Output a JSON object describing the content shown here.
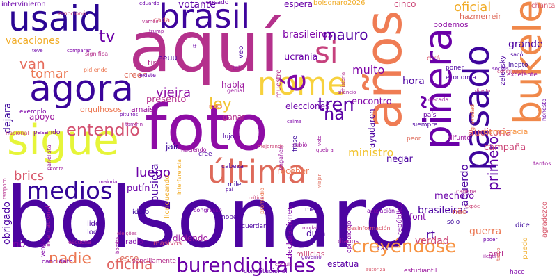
{
  "words": [
    {
      "text": "bolsonaro",
      "color": "#4c04a0",
      "size": 120,
      "rot": 0
    },
    {
      "text": "aquí",
      "color": "#b4318c",
      "size": 100,
      "rot": 0
    },
    {
      "text": "foto",
      "color": "#8e0ca5",
      "size": 90,
      "rot": 0
    },
    {
      "text": "años",
      "color": "#ef7c54",
      "size": 72,
      "rot": -90
    },
    {
      "text": "sigue",
      "color": "#e6f539",
      "size": 60,
      "rot": 0
    },
    {
      "text": "agora",
      "color": "#3a049a",
      "size": 52,
      "rot": 0
    },
    {
      "text": "piñera",
      "color": "#6a00a8",
      "size": 55,
      "rot": -90
    },
    {
      "text": "bukele",
      "color": "#f0884a",
      "size": 54,
      "rot": -90
    },
    {
      "text": "pasado",
      "color": "#3e049c",
      "size": 50,
      "rot": -90
    },
    {
      "text": "usaid",
      "color": "#2a0593",
      "size": 50,
      "rot": 0
    },
    {
      "text": "brasil",
      "color": "#3e049c",
      "size": 48,
      "rot": 0
    },
    {
      "text": "nome",
      "color": "#f7d13d",
      "size": 45,
      "rot": 0
    },
    {
      "text": "última",
      "color": "#de6a5a",
      "size": 45,
      "rot": 0
    },
    {
      "text": "é",
      "color": "#7f0aa7",
      "size": 45,
      "rot": -90
    },
    {
      "text": "si",
      "color": "#c6417d",
      "size": 42,
      "rot": 0
    },
    {
      "text": "medios",
      "color": "#330597",
      "size": 34,
      "rot": 0
    },
    {
      "text": "burendigitales",
      "color": "#6a00a8",
      "size": 28,
      "rot": 0
    },
    {
      "text": "creyéndose",
      "color": "#f79342",
      "size": 26,
      "rot": 0
    },
    {
      "text": "entendió",
      "color": "#d35171",
      "size": 24,
      "rot": 0
    },
    {
      "text": "tren",
      "color": "#5c01a6",
      "size": 26,
      "rot": 0
    },
    {
      "text": "tv",
      "color": "#6b00a8",
      "size": 24,
      "rot": 0
    },
    {
      "text": "van",
      "color": "#e66c5c",
      "size": 20,
      "rot": 0
    },
    {
      "text": "tomar",
      "color": "#ec7853",
      "size": 18,
      "rot": 0
    },
    {
      "text": "mauro",
      "color": "#5302a3",
      "size": 20,
      "rot": 0
    },
    {
      "text": "ley",
      "color": "#f2c431",
      "size": 22,
      "rot": 0
    },
    {
      "text": "na",
      "color": "#5a01a5",
      "size": 24,
      "rot": 0
    },
    {
      "text": "nadie",
      "color": "#ec7853",
      "size": 22,
      "rot": 0
    },
    {
      "text": "oficina",
      "color": "#e06461",
      "size": 20,
      "rot": 0
    },
    {
      "text": "luego",
      "color": "#6c00a8",
      "size": 18,
      "rot": 0
    },
    {
      "text": "brics",
      "color": "#d8576b",
      "size": 18,
      "rot": 0
    },
    {
      "text": "vieira",
      "color": "#8f0da4",
      "size": 18,
      "rot": 0
    },
    {
      "text": "muito",
      "color": "#7e03a8",
      "size": 16,
      "rot": 0
    },
    {
      "text": "primero",
      "color": "#5e01a6",
      "size": 20,
      "rot": -90
    },
    {
      "text": "oficial",
      "color": "#f1ad2a",
      "size": 18,
      "rot": 0
    },
    {
      "text": "grande",
      "color": "#4c02a1",
      "size": 14,
      "rot": 0
    },
    {
      "text": "brasileiros",
      "color": "#7e03a8",
      "size": 14,
      "rot": 0
    },
    {
      "text": "ucrania",
      "color": "#6a00a8",
      "size": 13,
      "rot": 0
    },
    {
      "text": "vacaciones",
      "color": "#f1ad2a",
      "size": 14,
      "rot": 0
    },
    {
      "text": "dejara",
      "color": "#3a049a",
      "size": 14,
      "rot": -90
    },
    {
      "text": "obrigado",
      "color": "#4c02a1",
      "size": 14,
      "rot": -90
    },
    {
      "text": "pusiera",
      "color": "#4c02a1",
      "size": 15,
      "rot": -90
    },
    {
      "text": "putín",
      "color": "#6a00a8",
      "size": 13,
      "rot": 0
    },
    {
      "text": "mechero",
      "color": "#6a00a8",
      "size": 13,
      "rot": 0
    },
    {
      "text": "brasileiras",
      "color": "#4c02a1",
      "size": 14,
      "rot": 0
    },
    {
      "text": "ministro",
      "color": "#f2c431",
      "size": 16,
      "rot": 0
    },
    {
      "text": "acuerdo",
      "color": "#4c02a1",
      "size": 15,
      "rot": -90
    },
    {
      "text": "guerra",
      "color": "#ec7853",
      "size": 14,
      "rot": 0
    },
    {
      "text": "verdad",
      "color": "#cc4778",
      "size": 14,
      "rot": 0
    },
    {
      "text": "hora",
      "color": "#4c02a1",
      "size": 14,
      "rot": 0
    },
    {
      "text": "encontro",
      "color": "#7e03a8",
      "size": 13,
      "rot": 0
    },
    {
      "text": "ayudaron",
      "color": "#4c02a1",
      "size": 12,
      "rot": -90
    },
    {
      "text": "auditoria",
      "color": "#d8576b",
      "size": 14,
      "rot": 0
    },
    {
      "text": "campaña",
      "color": "#cc4778",
      "size": 13,
      "rot": 0
    },
    {
      "text": "democracia",
      "color": "#f79342",
      "size": 11,
      "rot": 0
    },
    {
      "text": "presento",
      "color": "#b52f8c",
      "size": 13,
      "rot": 0
    },
    {
      "text": "creer",
      "color": "#de6a5a",
      "size": 12,
      "rot": 0
    },
    {
      "text": "apoyo",
      "color": "#9c179e",
      "size": 12,
      "rot": 0
    },
    {
      "text": "elecciones",
      "color": "#6a00a8",
      "size": 12,
      "rot": 0
    },
    {
      "text": "jair",
      "color": "#3a049a",
      "size": 12,
      "rot": 0
    },
    {
      "text": "negar",
      "color": "#4c02a1",
      "size": 13,
      "rot": 0
    },
    {
      "text": "receber",
      "color": "#ec7853",
      "size": 12,
      "rot": 0
    },
    {
      "text": "rio",
      "color": "#7e03a8",
      "size": 14,
      "rot": 0
    },
    {
      "text": "esse",
      "color": "#de6a5a",
      "size": 12,
      "rot": 0
    },
    {
      "text": "estatua",
      "color": "#5c01a6",
      "size": 12,
      "rot": 0
    },
    {
      "text": "milicias",
      "color": "#cc4778",
      "size": 11,
      "rot": 0
    },
    {
      "text": "diciendo",
      "color": "#9c179e",
      "size": 12,
      "rot": 0
    },
    {
      "text": "dura",
      "color": "#4c02a1",
      "size": 12,
      "rot": 0
    },
    {
      "text": "font",
      "color": "#7e03a8",
      "size": 12,
      "rot": 0
    },
    {
      "text": "rt",
      "color": "#4c02a1",
      "size": 16,
      "rot": 0
    },
    {
      "text": "dice",
      "color": "#3a049a",
      "size": 10,
      "rot": 0
    },
    {
      "text": "puedo",
      "color": "#f1ad2a",
      "size": 10,
      "rot": -90
    },
    {
      "text": "anti",
      "color": "#b52f8c",
      "size": 11,
      "rot": 0
    },
    {
      "text": "hace",
      "color": "#7e03a8",
      "size": 9,
      "rot": 0
    },
    {
      "text": "não",
      "color": "#de6a5a",
      "size": 11,
      "rot": 0
    },
    {
      "text": "agradezco",
      "color": "#d8576b",
      "size": 10,
      "rot": -90
    },
    {
      "text": "república",
      "color": "#7e03a8",
      "size": 10,
      "rot": -90
    },
    {
      "text": "habla",
      "color": "#9c179e",
      "size": 12,
      "rot": 0
    },
    {
      "text": "ganar",
      "color": "#b52f8c",
      "size": 11,
      "rot": 0
    },
    {
      "text": "eeuu",
      "color": "#4c02a1",
      "size": 11,
      "rot": 0
    },
    {
      "text": "veo",
      "color": "#4c02a1",
      "size": 10,
      "rot": -90
    },
    {
      "text": "cinco",
      "color": "#cc4778",
      "size": 12,
      "rot": 0
    },
    {
      "text": "podemos",
      "color": "#8f0da4",
      "size": 11,
      "rot": 0
    },
    {
      "text": "votante",
      "color": "#5c01a6",
      "size": 14,
      "rot": 0
    },
    {
      "text": "espera",
      "color": "#6a00a8",
      "size": 12,
      "rot": 0
    },
    {
      "text": "hazmerreir",
      "color": "#de6a5a",
      "size": 11,
      "rot": 0
    },
    {
      "text": "chanta",
      "color": "#d8576b",
      "size": 10,
      "rot": 0
    },
    {
      "text": "intervinieron",
      "color": "#6a00a8",
      "size": 10,
      "rot": 0
    },
    {
      "text": "bolsonaro2026",
      "color": "#f1ad2a",
      "size": 10,
      "rot": 0
    },
    {
      "text": "zelensky",
      "color": "#4c02a1",
      "size": 10,
      "rot": -90
    },
    {
      "text": "muestre",
      "color": "#b52f8c",
      "size": 10,
      "rot": -90
    },
    {
      "text": "tipo",
      "color": "#b52f8c",
      "size": 11,
      "rot": 0
    },
    {
      "text": "cada",
      "color": "#d8576b",
      "size": 10,
      "rot": 0
    },
    {
      "text": "pensado",
      "color": "#6a00a8",
      "size": 9,
      "rot": 0
    },
    {
      "text": "dirá",
      "color": "#d8576b",
      "size": 10,
      "rot": 0
    },
    {
      "text": "poner",
      "color": "#4c02a1",
      "size": 9,
      "rot": 0
    },
    {
      "text": "economia",
      "color": "#4c02a1",
      "size": 9,
      "rot": 0
    },
    {
      "text": "inepto",
      "color": "#3a049a",
      "size": 9,
      "rot": 0
    },
    {
      "text": "excelente",
      "color": "#9c179e",
      "size": 9,
      "rot": 0
    },
    {
      "text": "orgulhosos",
      "color": "#ec7853",
      "size": 11,
      "rot": 0
    },
    {
      "text": "jamais",
      "color": "#9c179e",
      "size": 11,
      "rot": 0
    },
    {
      "text": "exemplo",
      "color": "#7e03a8",
      "size": 9,
      "rot": 0
    },
    {
      "text": "pasando",
      "color": "#7e03a8",
      "size": 9,
      "rot": 0
    },
    {
      "text": "lujo",
      "color": "#4c02a1",
      "size": 9,
      "rot": 0
    },
    {
      "text": "cree",
      "color": "#4c02a1",
      "size": 9,
      "rot": 0
    },
    {
      "text": "cabeza",
      "color": "#4c02a1",
      "size": 9,
      "rot": 0
    },
    {
      "text": "haciendo",
      "color": "#9c179e",
      "size": 8,
      "rot": 0
    },
    {
      "text": "ídolo",
      "color": "#3a049a",
      "size": 10,
      "rot": 0
    },
    {
      "text": "lider",
      "color": "#4c02a1",
      "size": 10,
      "rot": 0
    },
    {
      "text": "logró",
      "color": "#4c02a1",
      "size": 10,
      "rot": 0
    },
    {
      "text": "radio",
      "color": "#7e03a8",
      "size": 10,
      "rot": 0
    },
    {
      "text": "masivos",
      "color": "#cc4778",
      "size": 10,
      "rot": 0
    },
    {
      "text": "candidato",
      "color": "#7e03a8",
      "size": 9,
      "rot": 0
    },
    {
      "text": "sencillamente",
      "color": "#b52f8c",
      "size": 9,
      "rot": 0
    },
    {
      "text": "constitucional",
      "color": "#6a00a8",
      "size": 9,
      "rot": 0
    },
    {
      "text": "estudiantil",
      "color": "#9c179e",
      "size": 9,
      "rot": 0
    },
    {
      "text": "recuerdan",
      "color": "#4c02a1",
      "size": 9,
      "rot": 0
    },
    {
      "text": "mejor",
      "color": "#4c02a1",
      "size": 9,
      "rot": 0
    },
    {
      "text": "opinoloigo",
      "color": "#7e03a8",
      "size": 9,
      "rot": -90
    },
    {
      "text": "diarios",
      "color": "#9c179e",
      "size": 9,
      "rot": 0
    },
    {
      "text": "casi",
      "color": "#4c02a1",
      "size": 9,
      "rot": 0
    },
    {
      "text": "sólo",
      "color": "#3a049a",
      "size": 9,
      "rot": 0
    },
    {
      "text": "milei",
      "color": "#3a049a",
      "size": 9,
      "rot": 0
    },
    {
      "text": "nobel",
      "color": "#4c02a1",
      "size": 9,
      "rot": 0
    },
    {
      "text": "congresso",
      "color": "#7e03a8",
      "size": 8,
      "rot": 0
    },
    {
      "text": "internacional",
      "color": "#9c179e",
      "size": 9,
      "rot": -90
    },
    {
      "text": "declaraciones",
      "color": "#7e03a8",
      "size": 11,
      "rot": -90
    },
    {
      "text": "lloriqueando",
      "color": "#f1ad2a",
      "size": 10,
      "rot": -90
    },
    {
      "text": "frase",
      "color": "#3a049a",
      "size": 9,
      "rot": -90
    },
    {
      "text": "vendió",
      "color": "#7e03a8",
      "size": 8,
      "rot": -90
    },
    {
      "text": "escucha",
      "color": "#9c179e",
      "size": 8,
      "rot": 0
    },
    {
      "text": "emocionó",
      "color": "#cc4778",
      "size": 8,
      "rot": 0
    },
    {
      "text": "significa",
      "color": "#b52f8c",
      "size": 8,
      "rot": 0
    },
    {
      "text": "pidiendo",
      "color": "#ec7853",
      "size": 8,
      "rot": 0
    },
    {
      "text": "existe",
      "color": "#6a00a8",
      "size": 8,
      "rot": 0
    },
    {
      "text": "genial",
      "color": "#9c179e",
      "size": 8,
      "rot": 0
    },
    {
      "text": "década",
      "color": "#9c179e",
      "size": 8,
      "rot": 0
    },
    {
      "text": "país",
      "color": "#6a00a8",
      "size": 9,
      "rot": 0
    },
    {
      "text": "siempre",
      "color": "#4c02a1",
      "size": 9,
      "rot": 0
    },
    {
      "text": "peor",
      "color": "#de6a5a",
      "size": 9,
      "rot": 0
    },
    {
      "text": "difunto",
      "color": "#9c179e",
      "size": 9,
      "rot": 0
    },
    {
      "text": "honesto",
      "color": "#6a00a8",
      "size": 8,
      "rot": -90
    },
    {
      "text": "cadena",
      "color": "#b52f8c",
      "size": 8,
      "rot": 0
    },
    {
      "text": "tantos",
      "color": "#9c179e",
      "size": 8,
      "rot": 0
    },
    {
      "text": "gravedad",
      "color": "#ec7853",
      "size": 8,
      "rot": -90
    },
    {
      "text": "subió",
      "color": "#9c179e",
      "size": 8,
      "rot": 0
    },
    {
      "text": "sacó",
      "color": "#4c02a1",
      "size": 8,
      "rot": 0
    },
    {
      "text": "sociais",
      "color": "#6a00a8",
      "size": 7,
      "rot": 0
    },
    {
      "text": "constituição",
      "color": "#cc4778",
      "size": 7,
      "rot": 0
    },
    {
      "text": "silêncio",
      "color": "#9c179e",
      "size": 7,
      "rot": 0
    },
    {
      "text": "direito",
      "color": "#b52f8c",
      "size": 7,
      "rot": 0
    },
    {
      "text": "pituitos",
      "color": "#6a00a8",
      "size": 7,
      "rot": 0
    },
    {
      "text": "tamirin",
      "color": "#9c179e",
      "size": 7,
      "rot": 0
    },
    {
      "text": "acusación",
      "color": "#7e03a8",
      "size": 8,
      "rot": 0
    },
    {
      "text": "desinformación",
      "color": "#d8576b",
      "size": 8,
      "rot": 0
    },
    {
      "text": "poder",
      "color": "#6a00a8",
      "size": 7,
      "rot": 0
    },
    {
      "text": "ilegal",
      "color": "#9c179e",
      "size": 7,
      "rot": 0
    },
    {
      "text": "expôe",
      "color": "#cc4778",
      "size": 7,
      "rot": 0
    },
    {
      "text": "tanto",
      "color": "#de6a5a",
      "size": 7,
      "rot": -90
    },
    {
      "text": "trump",
      "color": "#9c179e",
      "size": 7,
      "rot": 0
    },
    {
      "text": "eduardo",
      "color": "#6a00a8",
      "size": 7,
      "rot": 0
    },
    {
      "text": "vamos",
      "color": "#b52f8c",
      "size": 7,
      "rot": 0
    },
    {
      "text": "tf",
      "color": "#6a00a8",
      "size": 7,
      "rot": 0
    },
    {
      "text": "teve",
      "color": "#6a00a8",
      "size": 7,
      "rot": 0
    },
    {
      "text": "comparan",
      "color": "#7e03a8",
      "size": 7,
      "rot": 0
    },
    {
      "text": "nacional",
      "color": "#cc4778",
      "size": 8,
      "rot": 0
    },
    {
      "text": "panelista",
      "color": "#9c179e",
      "size": 8,
      "rot": -90
    },
    {
      "text": "tampoco",
      "color": "#b52f8c",
      "size": 7,
      "rot": -90
    },
    {
      "text": "conta",
      "color": "#9c179e",
      "size": 7,
      "rot": 0
    },
    {
      "text": "maioria",
      "color": "#7e03a8",
      "size": 7,
      "rot": 0
    },
    {
      "text": "redes",
      "color": "#ec7853",
      "size": 7,
      "rot": 0
    },
    {
      "text": "calma",
      "color": "#7e03a8",
      "size": 7,
      "rot": 0
    },
    {
      "text": "quebra",
      "color": "#9c179e",
      "size": 7,
      "rot": 0
    },
    {
      "text": "voto",
      "color": "#9c179e",
      "size": 7,
      "rot": -90
    },
    {
      "text": "tal",
      "color": "#9c179e",
      "size": 8,
      "rot": 0
    },
    {
      "text": "pai",
      "color": "#4c02a1",
      "size": 7,
      "rot": 0
    },
    {
      "text": "mejorando",
      "color": "#cc4778",
      "size": 7,
      "rot": 0
    },
    {
      "text": "engañen",
      "color": "#9c179e",
      "size": 8,
      "rot": -90
    },
    {
      "text": "viajar",
      "color": "#de6a5a",
      "size": 7,
      "rot": -90
    },
    {
      "text": "historia",
      "color": "#b52f8c",
      "size": 7,
      "rot": -90
    },
    {
      "text": "interferencia",
      "color": "#f1ad2a",
      "size": 8,
      "rot": -90
    },
    {
      "text": "promedio",
      "color": "#ec7853",
      "size": 8,
      "rot": -90
    },
    {
      "text": "mudar",
      "color": "#9c179e",
      "size": 7,
      "rot": 0
    },
    {
      "text": "governo",
      "color": "#6a00a8",
      "size": 7,
      "rot": 0
    },
    {
      "text": "autoriza",
      "color": "#d8576b",
      "size": 7,
      "rot": 0
    },
    {
      "text": "conluio",
      "color": "#9c179e",
      "size": 7,
      "rot": 0
    },
    {
      "text": "crítica",
      "color": "#cc4778",
      "size": 7,
      "rot": 0
    },
    {
      "text": "eleições",
      "color": "#b52f8c",
      "size": 7,
      "rot": 0
    },
    {
      "text": "bomba",
      "color": "#9c179e",
      "size": 7,
      "rot": -90
    }
  ]
}
